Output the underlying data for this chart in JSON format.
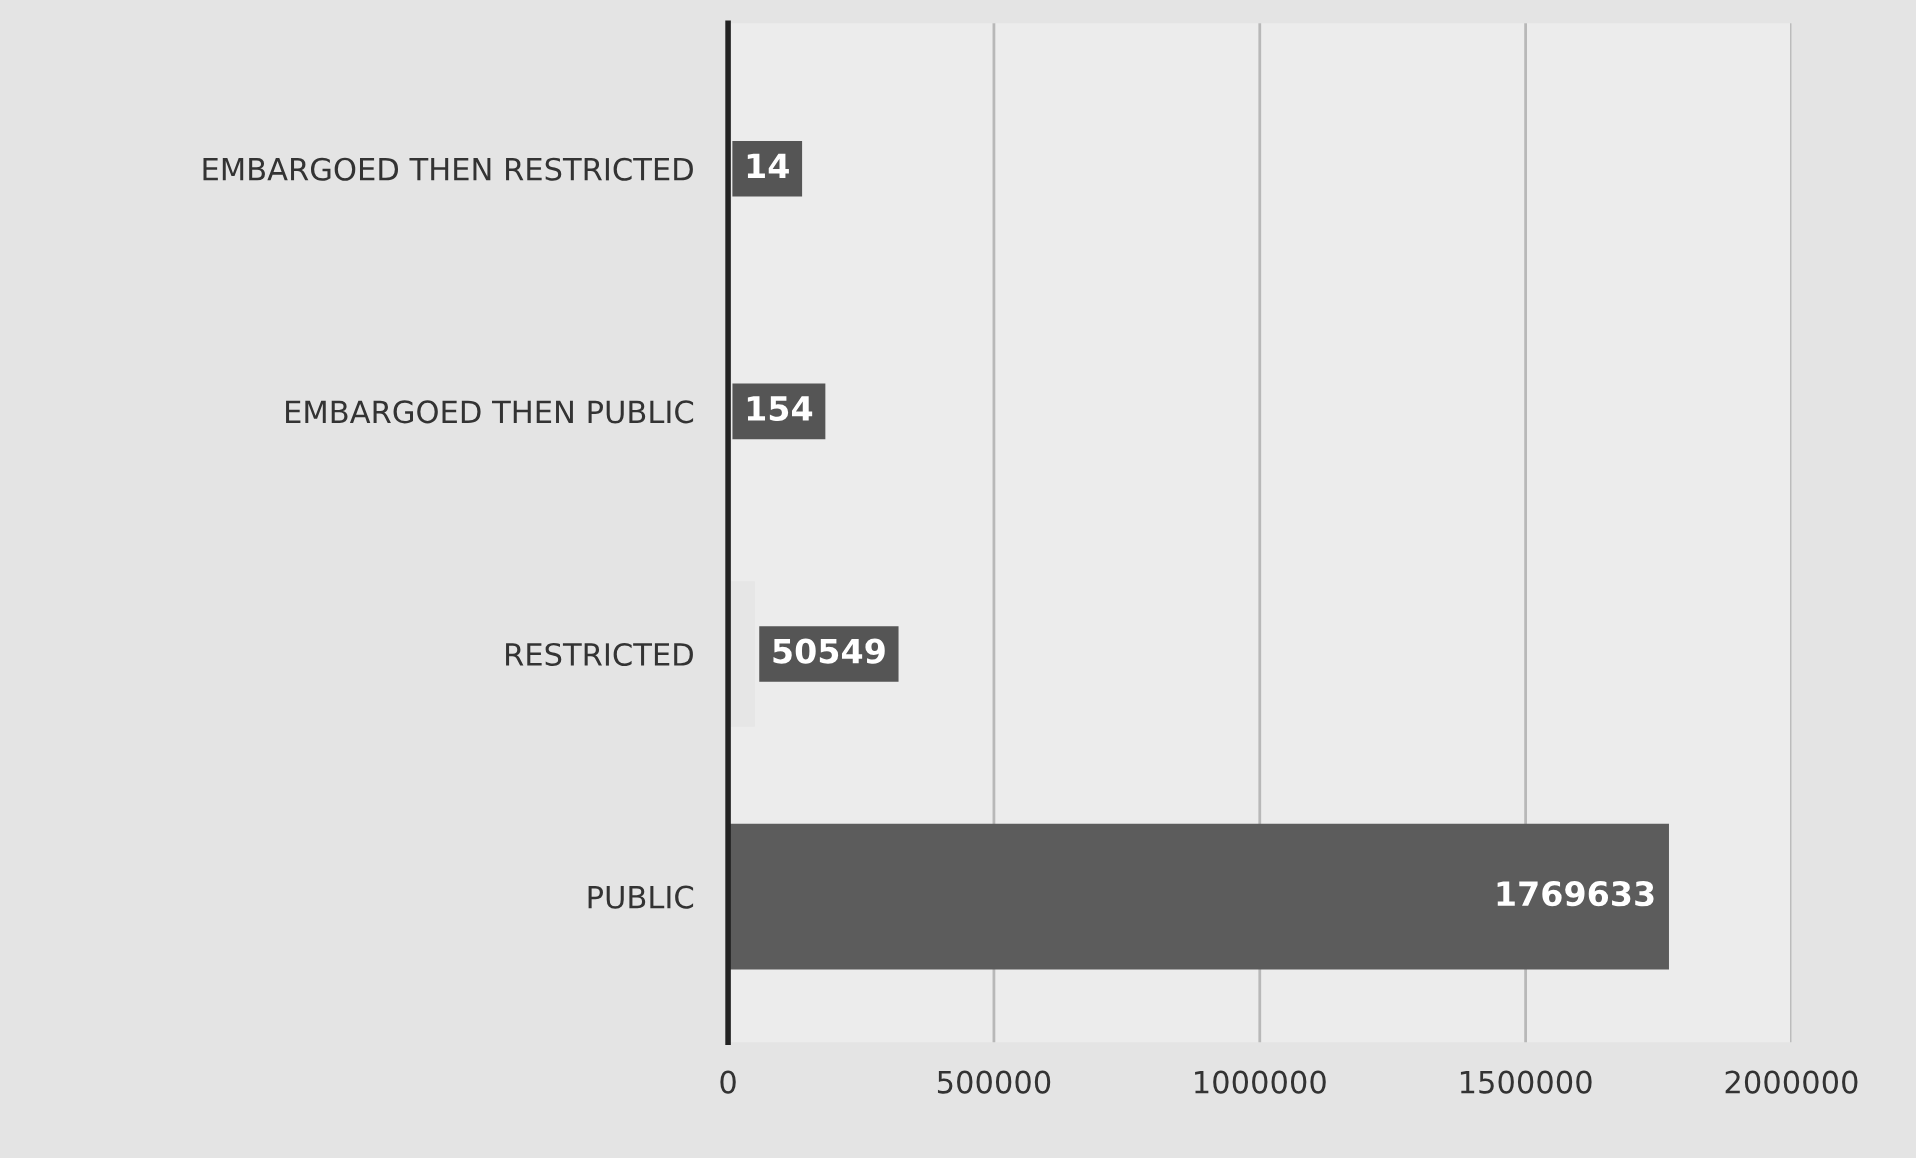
{
  "chart_data": {
    "type": "bar",
    "orientation": "horizontal",
    "categories": [
      "EMBARGOED THEN RESTRICTED",
      "EMBARGOED THEN PUBLIC",
      "RESTRICTED",
      "PUBLIC"
    ],
    "values": [
      14,
      154,
      50549,
      1769633
    ],
    "colors": [
      "#7a7a7a",
      "#8c8c8c",
      "#e6e6e6",
      "#5c5c5c"
    ],
    "xlim": [
      0,
      2000000
    ],
    "xticks": [
      0,
      500000,
      1000000,
      1500000,
      2000000
    ],
    "grid": "x",
    "data_labels": true
  }
}
